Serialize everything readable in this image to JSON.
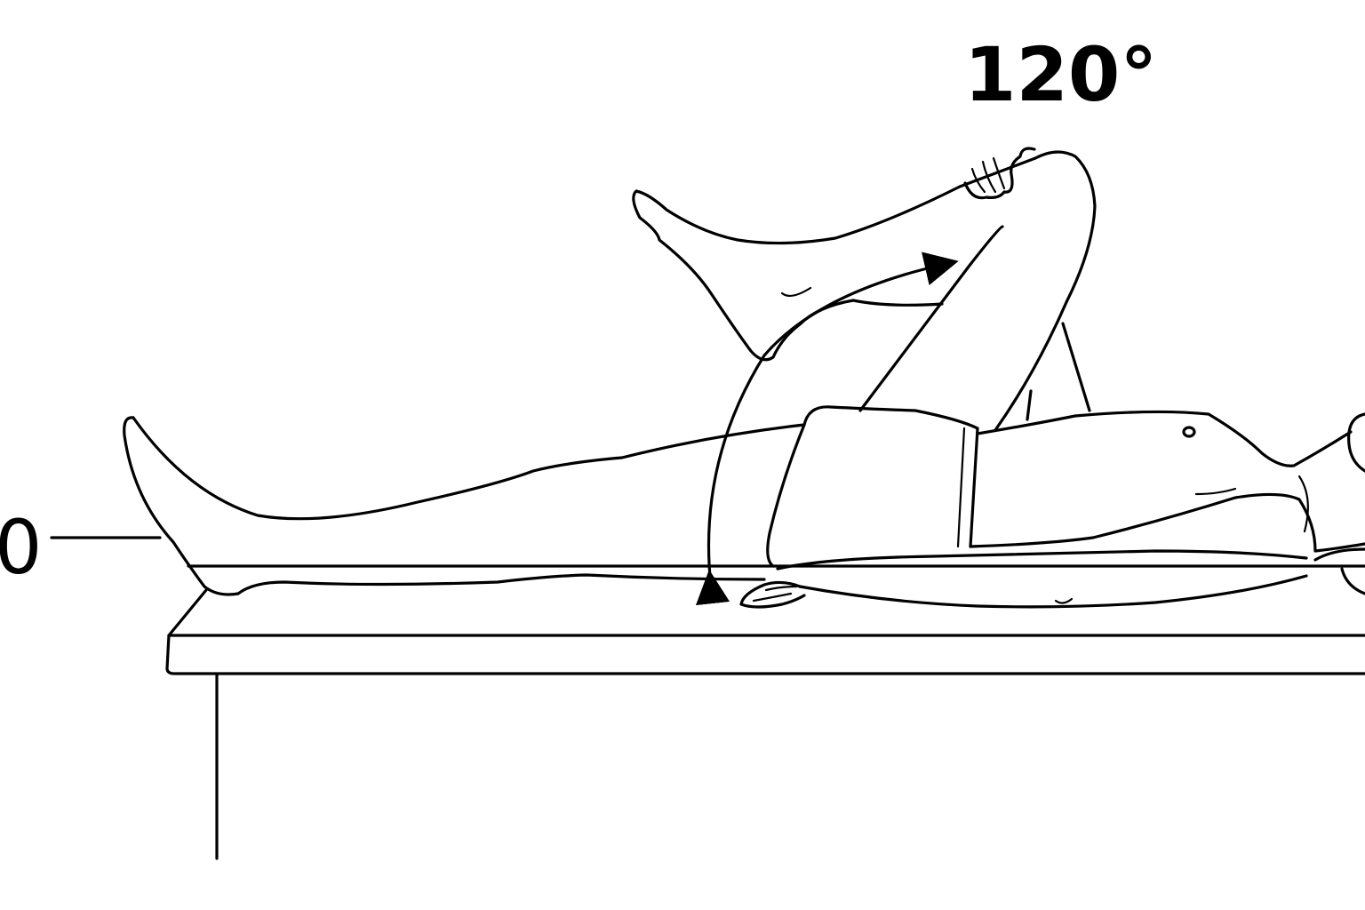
{
  "diagram": {
    "flexion_label": "120°",
    "neutral_label": "0"
  },
  "colors": {
    "ink": "#000000",
    "paper": "#ffffff"
  }
}
